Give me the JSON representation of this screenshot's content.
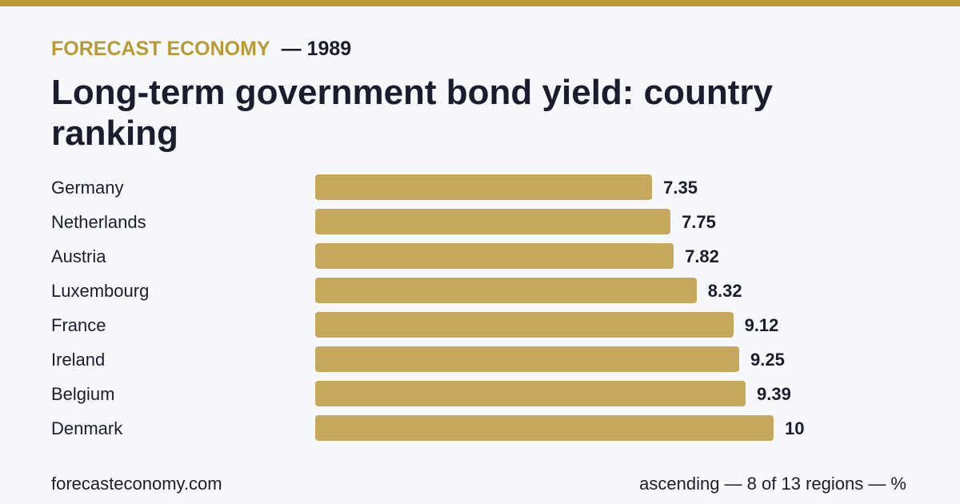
{
  "header": {
    "brand": "FORECAST ECONOMY",
    "year": "— 1989",
    "title": "Long-term government bond yield: country ranking"
  },
  "footer": {
    "site": "forecasteconomy.com",
    "note": "ascending — 8 of 13 regions — %"
  },
  "colors": {
    "accent": "#b89a36",
    "bar": "#c6a85c",
    "text": "#1b1d2e",
    "background": "#f7f8fb"
  },
  "chart_data": {
    "type": "bar",
    "orientation": "horizontal",
    "sort": "ascending",
    "categories": [
      "Germany",
      "Netherlands",
      "Austria",
      "Luxembourg",
      "France",
      "Ireland",
      "Belgium",
      "Denmark"
    ],
    "values": [
      7.35,
      7.75,
      7.82,
      8.32,
      9.12,
      9.25,
      9.39,
      10
    ],
    "value_labels": [
      "7.35",
      "7.75",
      "7.82",
      "8.32",
      "9.12",
      "9.25",
      "9.39",
      "10"
    ],
    "title": "Long-term government bond yield: country ranking",
    "xlabel": "",
    "ylabel": "",
    "grid": false
  }
}
